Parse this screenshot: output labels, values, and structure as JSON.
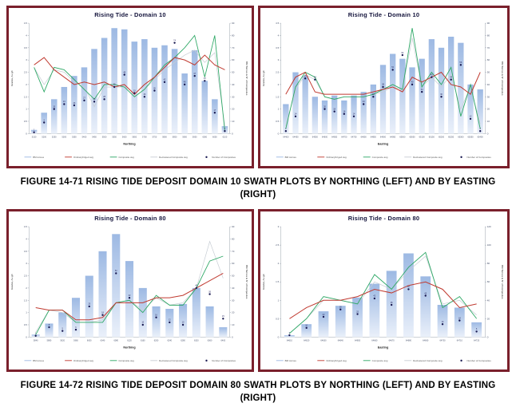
{
  "page": {
    "background": "#ffffff"
  },
  "captions": {
    "figure_14_71": "FIGURE 14-71 RISING TIDE DEPOSIT DOMAIN 10 SWATH PLOTS BY NORTHING (LEFT) AND BY EASTING (RIGHT)",
    "figure_14_72": "FIGURE 14-72 RISING TIDE DEPOSIT DOMAIN 80 SWATH PLOTS BY NORTHING (LEFT) AND BY EASTING (RIGHT)"
  },
  "colors": {
    "panel_border": "#7a202c",
    "title_text": "#14143c",
    "bar_top": "#9db9e3",
    "bar_bottom": "#eaf0fa",
    "kriged_line": "#c03a30",
    "composite_line": "#2ea866",
    "declustered_line": "#c7cdd4",
    "composites_dot": "#17174f",
    "axis_line": "#9aa3ad",
    "tick_text": "#45506b",
    "legend_text": "#555555"
  },
  "legend": {
    "items": [
      {
        "label": "BM tonnes",
        "swatch": "bar"
      },
      {
        "label": "OrdinaryKriged avg",
        "swatch": "kriged_line"
      },
      {
        "label": "Composite avg",
        "swatch": "composite_line"
      },
      {
        "label": "Declustered Composite avg",
        "swatch": "declustered_line"
      },
      {
        "label": "Number of Composites",
        "swatch": "composites_dot"
      }
    ]
  },
  "axis_labels": {
    "left": "Grades, Au g/t",
    "right": "BM Tonnes & N° of Composites"
  },
  "chart_data": [
    {
      "type": "bar",
      "title": "Rising Tide - Domain 10",
      "xlabel": "Northing",
      "ylabel_left": "Grades, Au g/t",
      "ylabel_right": "BM Tonnes & N° of Composites",
      "ylim_left": [
        0,
        4.5
      ],
      "ytick_left_step": 0.5,
      "ylim_right": [
        0,
        90
      ],
      "ytick_right_step": 10,
      "categories": [
        5150,
        5200,
        5250,
        5300,
        5350,
        5400,
        5450,
        5500,
        5550,
        5600,
        5650,
        5700,
        5750,
        5800,
        5850,
        5900,
        5950,
        6000,
        6050,
        6100
      ],
      "bars_bm_tonnes": [
        3,
        17,
        28,
        38,
        47,
        54,
        69,
        78,
        86,
        85,
        75,
        77,
        70,
        72,
        69,
        49,
        68,
        43,
        28,
        6
      ],
      "series": [
        {
          "name": "OrdinaryKriged avg",
          "axis": "left",
          "values": [
            2.8,
            3.1,
            2.6,
            2.3,
            2.0,
            2.1,
            2.0,
            2.1,
            1.9,
            2.0,
            1.6,
            2.0,
            2.3,
            2.7,
            3.1,
            3.0,
            2.8,
            3.2,
            2.8,
            2.6
          ]
        },
        {
          "name": "Composite avg",
          "axis": "left",
          "values": [
            2.7,
            1.7,
            2.7,
            2.6,
            2.2,
            1.8,
            1.4,
            2.0,
            2.0,
            1.9,
            1.5,
            1.8,
            2.3,
            2.8,
            3.1,
            3.5,
            4.0,
            2.3,
            4.0,
            0.1
          ]
        },
        {
          "name": "Declustered Composite avg",
          "axis": "left",
          "values": [
            2.7,
            2.0,
            2.6,
            2.5,
            2.1,
            1.9,
            1.1,
            1.9,
            1.9,
            1.9,
            1.5,
            1.8,
            2.2,
            2.6,
            2.9,
            3.2,
            3.4,
            2.9,
            3.3,
            0.3
          ]
        }
      ],
      "number_of_composites": [
        1,
        9,
        20,
        24,
        23,
        27,
        26,
        28,
        38,
        48,
        33,
        30,
        35,
        42,
        74,
        40,
        47,
        43,
        17,
        2
      ]
    },
    {
      "type": "bar",
      "title": "Rising Tide - Domain 10",
      "xlabel": "Easting",
      "ylabel_left": "Grades, Au g/t",
      "ylabel_right": "BM Tonnes & N° of Composites",
      "ylim_left": [
        0,
        4.5
      ],
      "ytick_left_step": 0.5,
      "ylim_right": [
        0,
        90
      ],
      "ytick_right_step": 10,
      "categories": [
        64400,
        64450,
        64500,
        64550,
        64600,
        64650,
        64700,
        64750,
        64800,
        64850,
        64900,
        64950,
        65000,
        65050,
        65100,
        65150,
        65200,
        65250,
        65300,
        65350,
        65400
      ],
      "bars_bm_tonnes": [
        24,
        50,
        47,
        30,
        27,
        31,
        27,
        31,
        34,
        40,
        56,
        65,
        61,
        54,
        61,
        77,
        70,
        79,
        74,
        40,
        36
      ],
      "series": [
        {
          "name": "OrdinaryKriged avg",
          "axis": "left",
          "values": [
            1.6,
            2.3,
            2.5,
            1.7,
            1.6,
            1.6,
            1.6,
            1.6,
            1.6,
            1.7,
            1.8,
            1.9,
            1.7,
            2.3,
            2.1,
            2.3,
            2.5,
            2.0,
            1.9,
            1.6,
            2.5
          ]
        },
        {
          "name": "Composite avg",
          "axis": "left",
          "values": [
            0.2,
            1.9,
            2.5,
            2.3,
            1.5,
            1.4,
            1.5,
            1.5,
            1.5,
            1.6,
            1.8,
            2.0,
            1.8,
            4.3,
            1.9,
            2.5,
            2.0,
            2.7,
            0.7,
            2.0,
            0.2
          ]
        },
        {
          "name": "Declustered Composite avg",
          "axis": "left",
          "values": [
            0.3,
            1.8,
            2.4,
            2.2,
            1.5,
            1.4,
            1.5,
            1.5,
            1.5,
            1.6,
            1.7,
            1.9,
            1.8,
            3.9,
            1.9,
            2.3,
            1.9,
            2.4,
            1.0,
            1.9,
            0.4
          ]
        }
      ],
      "number_of_composites": [
        2,
        14,
        45,
        44,
        20,
        18,
        16,
        14,
        24,
        30,
        38,
        52,
        64,
        40,
        34,
        46,
        30,
        44,
        56,
        12,
        2
      ]
    },
    {
      "type": "bar",
      "title": "Rising Tide - Domain 80",
      "xlabel": "Northing",
      "ylabel_left": "Grades, Au g/t",
      "ylabel_right": "BM Tonnes & N° of Composites",
      "ylim_left": [
        0,
        4.5
      ],
      "ytick_left_step": 0.5,
      "ylim_right": [
        0,
        90
      ],
      "ytick_right_step": 10,
      "categories": [
        5840,
        5880,
        5920,
        5960,
        6000,
        6040,
        6080,
        6120,
        6160,
        6200,
        6240,
        6280,
        6320,
        6360,
        6400
      ],
      "bars_bm_tonnes": [
        2,
        11,
        20,
        32,
        50,
        70,
        84,
        62,
        40,
        25,
        23,
        27,
        40,
        25,
        8
      ],
      "series": [
        {
          "name": "OrdinaryKriged avg",
          "axis": "left",
          "values": [
            1.2,
            1.1,
            1.1,
            0.7,
            0.7,
            0.8,
            1.4,
            1.4,
            1.4,
            1.6,
            1.6,
            1.7,
            2.0,
            2.3,
            2.6
          ]
        },
        {
          "name": "Composite avg",
          "axis": "left",
          "values": [
            0.1,
            1.1,
            1.1,
            0.6,
            0.6,
            0.6,
            1.4,
            1.5,
            1.0,
            1.7,
            1.3,
            1.3,
            2.0,
            3.1,
            3.3
          ]
        },
        {
          "name": "Declustered Composite avg",
          "axis": "left",
          "values": [
            0.2,
            1.1,
            1.0,
            0.6,
            0.6,
            0.7,
            1.4,
            1.5,
            1.1,
            1.6,
            1.3,
            1.4,
            2.0,
            3.9,
            2.4
          ]
        }
      ],
      "number_of_composites": [
        1,
        8,
        5,
        6,
        25,
        18,
        52,
        32,
        10,
        16,
        12,
        10,
        40,
        35,
        15
      ]
    },
    {
      "type": "bar",
      "title": "Rising Tide - Domain 80",
      "xlabel": "Easting",
      "ylabel_left": "Grades, Au g/t",
      "ylabel_right": "BM Tonnes & N° of Composites",
      "ylim_left": [
        0,
        3
      ],
      "ytick_left_step": 0.5,
      "ylim_right": [
        0,
        120
      ],
      "ytick_right_step": 20,
      "categories": [
        64610,
        64620,
        64630,
        64640,
        64650,
        64660,
        64670,
        64680,
        64690,
        64700,
        64710,
        64720
      ],
      "bars_bm_tonnes": [
        2,
        14,
        28,
        34,
        43,
        58,
        72,
        91,
        66,
        35,
        32,
        16
      ],
      "series": [
        {
          "name": "OrdinaryKriged avg",
          "axis": "left",
          "values": [
            0.5,
            0.8,
            1.0,
            1.0,
            1.1,
            1.3,
            1.2,
            1.4,
            1.5,
            1.3,
            0.8,
            0.9
          ]
        },
        {
          "name": "Composite avg",
          "axis": "left",
          "values": [
            0.1,
            0.5,
            1.1,
            1.0,
            0.9,
            1.7,
            1.3,
            1.9,
            2.3,
            0.8,
            1.1,
            0.5
          ]
        },
        {
          "name": "Declustered Composite avg",
          "axis": "left",
          "values": [
            0.1,
            0.5,
            1.0,
            1.0,
            0.9,
            1.5,
            1.3,
            1.8,
            2.2,
            0.9,
            1.0,
            0.6
          ]
        }
      ],
      "number_of_composites": [
        2,
        10,
        22,
        30,
        25,
        42,
        35,
        52,
        45,
        14,
        18,
        6
      ]
    }
  ]
}
